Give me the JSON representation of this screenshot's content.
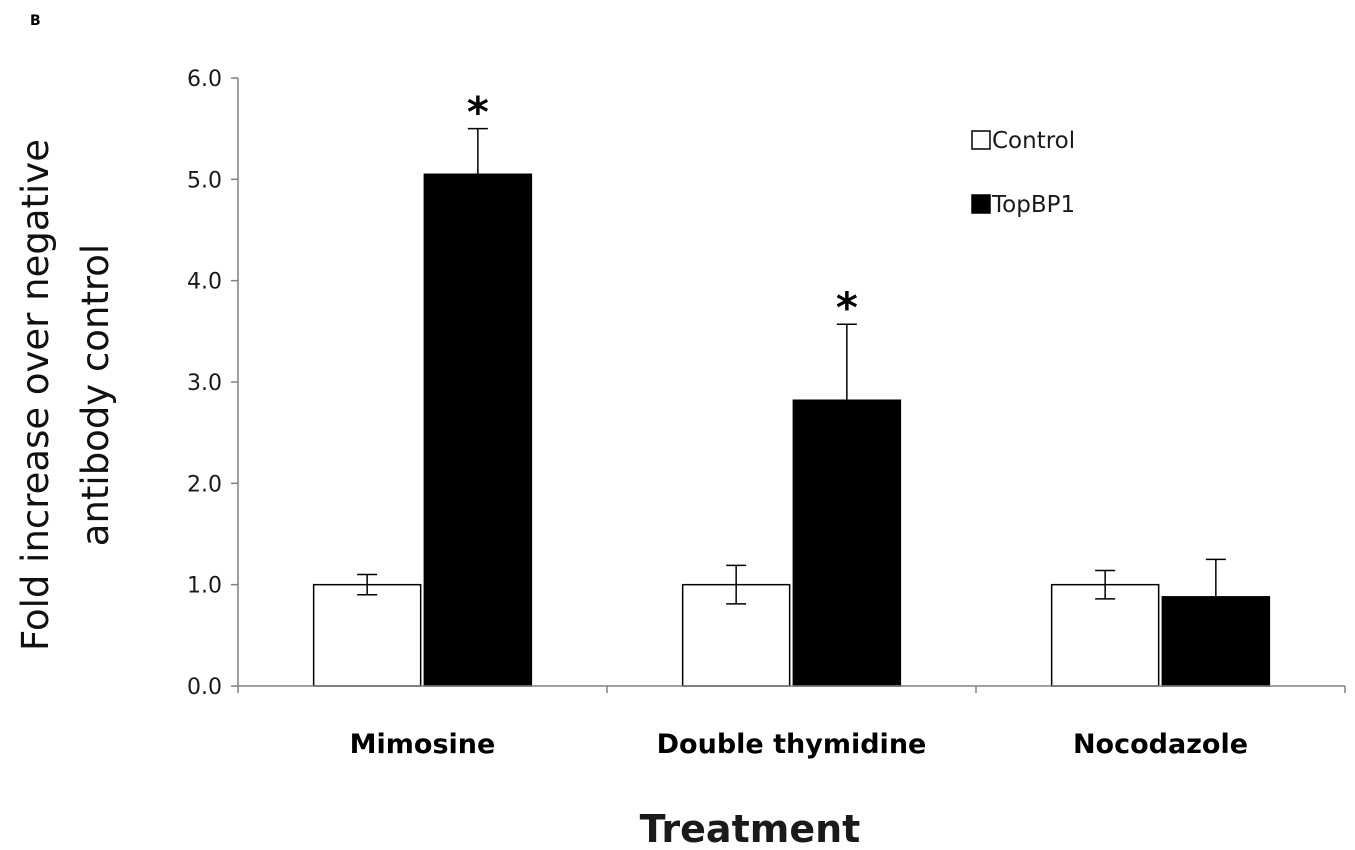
{
  "panel_label": "B",
  "chart_data": {
    "type": "bar",
    "title": "",
    "xlabel": "Treatment",
    "ylabel_lines": [
      "Fold increase over negative",
      "antibody control"
    ],
    "categories": [
      "Mimosine",
      "Double thymidine",
      "Nocodazole"
    ],
    "series": [
      {
        "name": "Control",
        "values": [
          1.0,
          1.0,
          1.0
        ],
        "errors": [
          0.1,
          0.19,
          0.14
        ],
        "color": "#ffffff"
      },
      {
        "name": "TopBP1",
        "values": [
          5.05,
          2.82,
          0.88
        ],
        "errors": [
          0.45,
          0.75,
          0.37
        ],
        "color": "#000000"
      }
    ],
    "ylim": [
      0,
      6
    ],
    "yticks": [
      "0.0",
      "1.0",
      "2.0",
      "3.0",
      "4.0",
      "5.0",
      "6.0"
    ],
    "significance": [
      "*",
      "*",
      ""
    ],
    "legend_position": "top-right",
    "grid": false
  }
}
